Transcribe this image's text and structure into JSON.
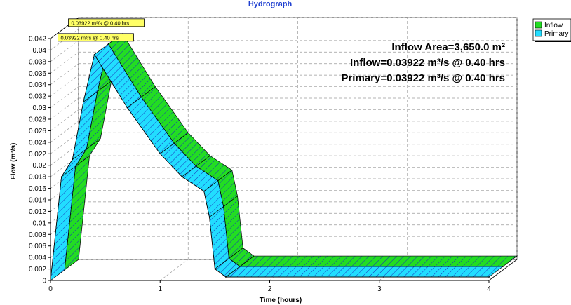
{
  "chart_data": {
    "type": "area",
    "title": "Hydrograph",
    "xlabel": "Time  (hours)",
    "ylabel": "Flow  (m³/s)",
    "xlim": [
      0,
      4
    ],
    "ylim": [
      0,
      0.042
    ],
    "x_ticks": [
      "0",
      "1",
      "2",
      "3",
      "4"
    ],
    "y_ticks": [
      "0",
      "0.002",
      "0.004",
      "0.006",
      "0.008",
      "0.01",
      "0.012",
      "0.014",
      "0.016",
      "0.018",
      "0.02",
      "0.022",
      "0.024",
      "0.026",
      "0.028",
      "0.03",
      "0.032",
      "0.034",
      "0.036",
      "0.038",
      "0.04",
      "0.042"
    ],
    "grid": true,
    "legend_position": "top-right",
    "series": [
      {
        "name": "Inflow",
        "color": "#22dd22",
        "x": [
          0.0,
          0.1,
          0.2,
          0.3,
          0.4,
          0.7,
          1.0,
          1.2,
          1.4,
          1.45,
          1.5,
          1.6,
          4.0
        ],
        "y": [
          0.0,
          0.018,
          0.021,
          0.031,
          0.03922,
          0.03,
          0.022,
          0.018,
          0.0155,
          0.011,
          0.002,
          0.0006,
          0.0006
        ]
      },
      {
        "name": "Primary",
        "color": "#22ddff",
        "x": [
          0.0,
          0.1,
          0.2,
          0.3,
          0.4,
          0.7,
          1.0,
          1.2,
          1.4,
          1.45,
          1.5,
          1.6,
          4.0
        ],
        "y": [
          0.0,
          0.018,
          0.021,
          0.031,
          0.03922,
          0.03,
          0.022,
          0.018,
          0.0155,
          0.011,
          0.002,
          0.0006,
          0.0006
        ]
      }
    ],
    "annotations": [
      {
        "series": "Inflow",
        "text": "0.03922 m³/s @ 0.40 hrs"
      },
      {
        "series": "Primary",
        "text": "0.03922 m³/s @ 0.40 hrs"
      }
    ],
    "info_lines": [
      "Inflow Area=3,650.0 m²",
      "Inflow=0.03922 m³/s @ 0.40 hrs",
      "Primary=0.03922 m³/s @ 0.40 hrs"
    ]
  }
}
